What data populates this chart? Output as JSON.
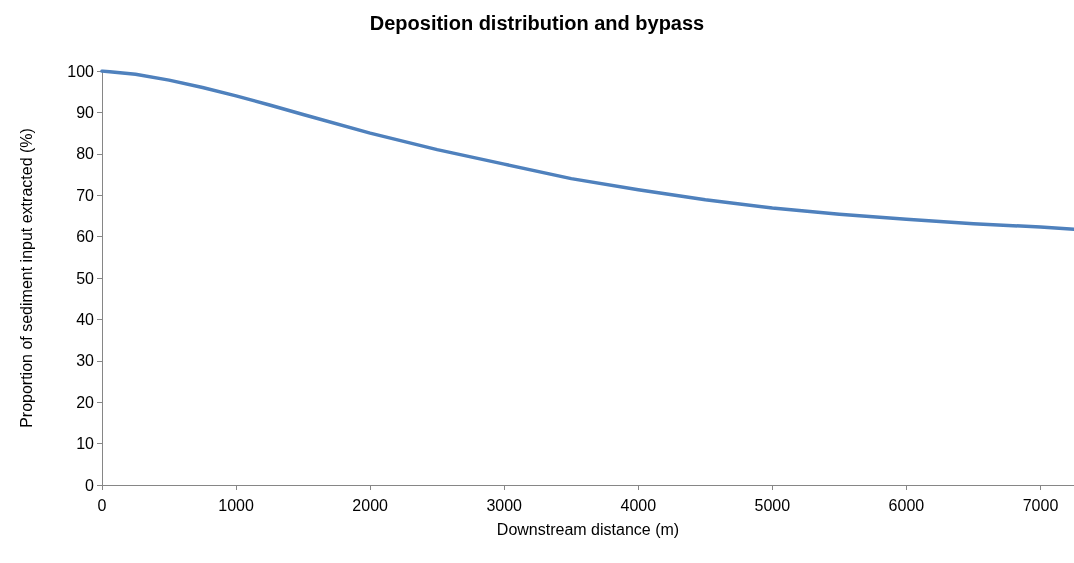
{
  "chart_data": {
    "type": "line",
    "title": "Deposition distribution and bypass",
    "xlabel": "Downstream distance (m)",
    "ylabel": "Proportion of sediment input extracted (%)",
    "x": [
      0,
      250,
      500,
      750,
      1000,
      1250,
      1500,
      2000,
      2500,
      3000,
      3500,
      4000,
      4500,
      5000,
      5500,
      6000,
      6500,
      7000,
      7250
    ],
    "series": [
      {
        "color": "#4f81bd",
        "values": [
          100,
          99.2,
          97.8,
          96,
          94,
          91.8,
          89.5,
          85,
          81,
          77.5,
          74,
          71.3,
          68.9,
          66.9,
          65.4,
          64.2,
          63.1,
          62.3,
          61.8
        ]
      }
    ],
    "xlim": [
      0,
      7250
    ],
    "xticks": [
      0,
      1000,
      2000,
      3000,
      4000,
      5000,
      6000,
      7000
    ],
    "ylim": [
      0,
      100
    ],
    "yticks": [
      0,
      10,
      20,
      30,
      40,
      50,
      60,
      70,
      80,
      90,
      100
    ],
    "grid": false,
    "marker": "none",
    "line_style": "solid"
  }
}
